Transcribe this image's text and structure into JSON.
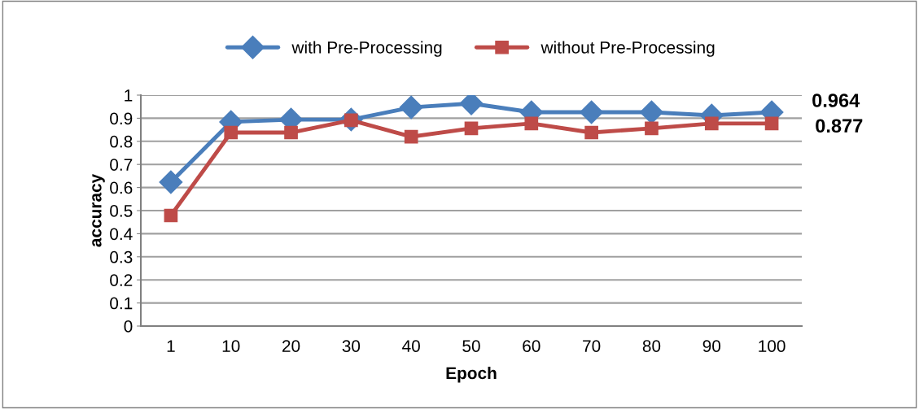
{
  "chart_data": {
    "type": "line",
    "xlabel": "Epoch",
    "ylabel": "accuracy",
    "categories": [
      "1",
      "10",
      "20",
      "30",
      "40",
      "50",
      "60",
      "70",
      "80",
      "90",
      "100"
    ],
    "series": [
      {
        "name": "with Pre-Processing",
        "color": "#4a7ebb",
        "marker": "diamond",
        "values": [
          0.623,
          0.884,
          0.894,
          0.894,
          0.947,
          0.964,
          0.926,
          0.926,
          0.926,
          0.912,
          0.926
        ]
      },
      {
        "name": "without Pre-Processing",
        "color": "#be4b48",
        "marker": "square",
        "values": [
          0.479,
          0.838,
          0.838,
          0.891,
          0.82,
          0.856,
          0.877,
          0.838,
          0.856,
          0.877,
          0.877
        ]
      }
    ],
    "ylim": [
      0,
      1
    ],
    "yticks": [
      0,
      0.1,
      0.2,
      0.3,
      0.4,
      0.5,
      0.6,
      0.7,
      0.8,
      0.9,
      1
    ],
    "grid": "y",
    "legend": "top",
    "line_style": "solid",
    "annotations": [
      "0.964",
      "0.877"
    ]
  }
}
